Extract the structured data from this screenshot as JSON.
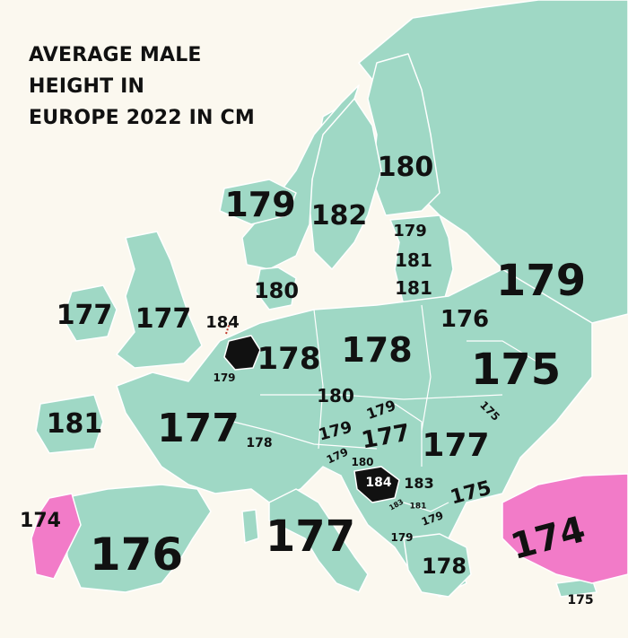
{
  "title": "AVERAGE MALE\nHEIGHT IN\nEUROPE 2022 IN CM",
  "colors": {
    "background": "#fbf8ef",
    "land": "#9fd8c5",
    "border": "#ffffff",
    "highlight_short": "#f27bc8",
    "highlight_tall": "#111111",
    "text": "#111111"
  },
  "labels": {
    "iceland": "179",
    "finland": "180",
    "norway": "179",
    "sweden": "182",
    "estonia": "179",
    "latvia": "181",
    "lithuania": "181",
    "russia": "179",
    "denmark": "180",
    "ireland": "177",
    "uk": "177",
    "netherlands": "184",
    "belarus": "176",
    "belgium": "179",
    "germany": "178",
    "poland": "178",
    "ukraine": "175",
    "czechia": "180",
    "slovakia": "179",
    "moldova": "175",
    "france": "177",
    "austria": "179",
    "hungary": "177",
    "romania": "177",
    "slovenia": "179",
    "croatia": "180",
    "switzerland": "178",
    "bosnia": "184",
    "serbia": "183",
    "bulgaria": "175",
    "montenegro": "183",
    "kosovo": "181",
    "north_macedonia": "179",
    "albania": "179",
    "portugal": "174",
    "spain": "176",
    "italy": "177",
    "greece": "178",
    "turkey": "174",
    "corsica": "181",
    "cyprus": "175"
  }
}
